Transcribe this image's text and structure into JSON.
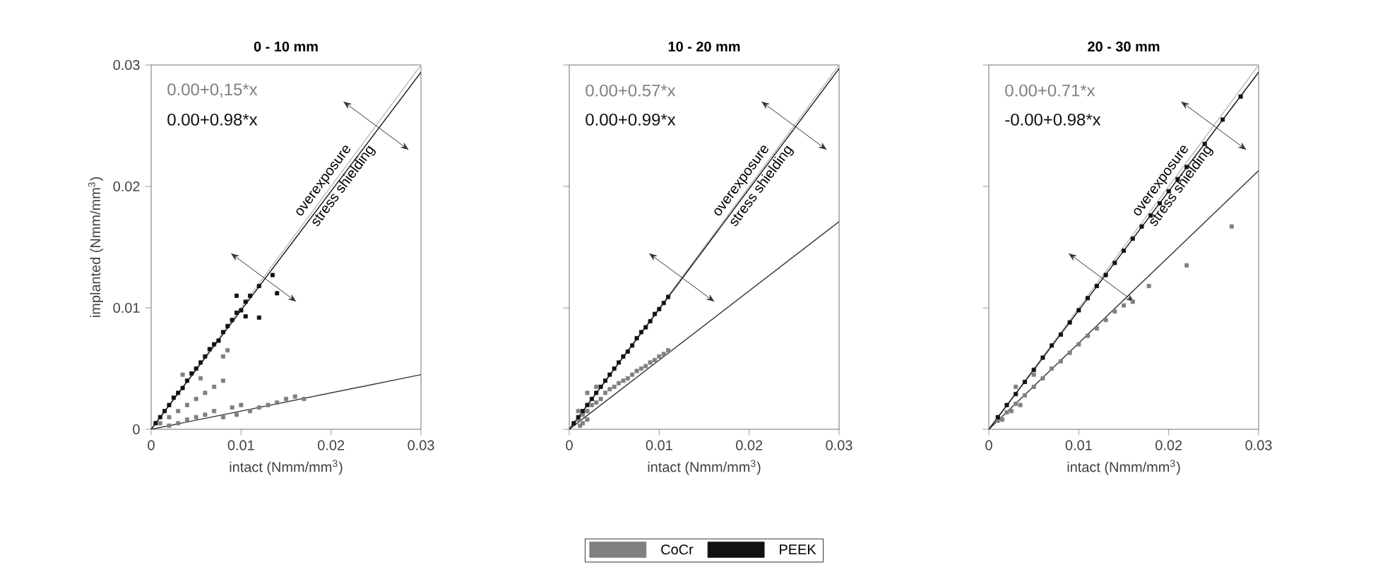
{
  "chart_data": [
    {
      "type": "scatter",
      "title": "0 - 10 mm",
      "xlabel": "intact (Nmm/mm$^{3}$)",
      "ylabel": "implanted (Nmm/mm$^{3}$)",
      "xlim": [
        0,
        0.03
      ],
      "ylim": [
        0,
        0.03
      ],
      "xticks": [
        0,
        0.01,
        0.02,
        0.03
      ],
      "yticks": [
        0,
        0.01,
        0.02,
        0.03
      ],
      "annotations": [
        "0.00+0,15*x",
        "0.00+0.98*x",
        "overexposure",
        "stress shielding"
      ],
      "series": [
        {
          "marker": "square",
          "color": "#808080",
          "x": [
            0.001,
            0.002,
            0.002,
            0.003,
            0.003,
            0.004,
            0.004,
            0.005,
            0.005,
            0.006,
            0.006,
            0.007,
            0.007,
            0.008,
            0.008,
            0.009,
            0.0095,
            0.01,
            0.011,
            0.012,
            0.013,
            0.014,
            0.015,
            0.016,
            0.0035,
            0.0055,
            0.008,
            0.0085,
            0.017
          ],
          "values": [
            0.0005,
            0.001,
            0.0003,
            0.0015,
            0.0005,
            0.002,
            0.0008,
            0.0025,
            0.001,
            0.003,
            0.0012,
            0.0035,
            0.0015,
            0.001,
            0.004,
            0.0018,
            0.0012,
            0.002,
            0.0015,
            0.0018,
            0.002,
            0.0022,
            0.0025,
            0.0027,
            0.0045,
            0.0042,
            0.006,
            0.0065,
            0.0025
          ]
        },
        {
          "marker": "square",
          "color": "#111111",
          "x": [
            0.0005,
            0.001,
            0.0015,
            0.002,
            0.0025,
            0.003,
            0.0035,
            0.004,
            0.0045,
            0.005,
            0.0055,
            0.006,
            0.0065,
            0.007,
            0.0075,
            0.008,
            0.0085,
            0.009,
            0.0095,
            0.01,
            0.0105,
            0.011,
            0.012,
            0.0095,
            0.0105,
            0.012,
            0.014,
            0.0135
          ],
          "values": [
            0.0005,
            0.001,
            0.0015,
            0.002,
            0.0026,
            0.003,
            0.0034,
            0.004,
            0.0046,
            0.005,
            0.0055,
            0.006,
            0.0066,
            0.007,
            0.0073,
            0.008,
            0.0085,
            0.009,
            0.0096,
            0.0098,
            0.0105,
            0.011,
            0.0118,
            0.011,
            0.0093,
            0.0092,
            0.0112,
            0.0127
          ]
        },
        {
          "type": "line",
          "color": "#bbbbbb",
          "x": [
            0,
            0.03
          ],
          "values": [
            0,
            0.03
          ]
        },
        {
          "type": "line",
          "color": "#333333",
          "x": [
            0,
            0.03
          ],
          "values": [
            0,
            0.0045
          ]
        },
        {
          "type": "line",
          "color": "#111111",
          "x": [
            0,
            0.03
          ],
          "values": [
            0,
            0.0294
          ]
        }
      ]
    },
    {
      "type": "scatter",
      "title": "10 - 20 mm",
      "xlabel": "intact (Nmm/mm$^{3}$)",
      "xlim": [
        0,
        0.03
      ],
      "ylim": [
        0,
        0.03
      ],
      "xticks": [
        0,
        0.01,
        0.02,
        0.03
      ],
      "yticks": [
        0,
        0.01,
        0.02,
        0.03
      ],
      "tick_labels": "x",
      "legend": "bottom",
      "annotations": [
        "0.00+0.57*x",
        "0.00+0.99*x",
        "overexposure",
        "stress shielding"
      ],
      "series": [
        {
          "name": "CoCr",
          "marker": "square",
          "color": "#808080",
          "x": [
            0.0012,
            0.001,
            0.0015,
            0.002,
            0.0025,
            0.003,
            0.0035,
            0.004,
            0.0045,
            0.005,
            0.0055,
            0.006,
            0.0065,
            0.007,
            0.0075,
            0.008,
            0.0085,
            0.009,
            0.0095,
            0.01,
            0.0105,
            0.011,
            0.001,
            0.002,
            0.003,
            0.0015,
            0.002
          ],
          "values": [
            0.0003,
            0.0008,
            0.0012,
            0.0015,
            0.002,
            0.0022,
            0.0025,
            0.003,
            0.0033,
            0.0035,
            0.0038,
            0.004,
            0.0042,
            0.0045,
            0.0048,
            0.005,
            0.0052,
            0.0055,
            0.0057,
            0.006,
            0.0062,
            0.0065,
            0.0015,
            0.003,
            0.0035,
            0.0005,
            0.0008
          ]
        },
        {
          "name": "PEEK",
          "marker": "square",
          "color": "#111111",
          "x": [
            0.0005,
            0.001,
            0.0015,
            0.002,
            0.0025,
            0.003,
            0.0035,
            0.004,
            0.0045,
            0.005,
            0.0055,
            0.006,
            0.0065,
            0.007,
            0.0075,
            0.008,
            0.0085,
            0.009,
            0.0095,
            0.01,
            0.0105,
            0.011
          ],
          "values": [
            0.0005,
            0.001,
            0.0015,
            0.002,
            0.0025,
            0.003,
            0.0035,
            0.004,
            0.0045,
            0.005,
            0.0055,
            0.006,
            0.0064,
            0.0069,
            0.0075,
            0.008,
            0.0084,
            0.0089,
            0.0095,
            0.0099,
            0.0104,
            0.0109
          ]
        },
        {
          "type": "line",
          "color": "#bbbbbb",
          "x": [
            0,
            0.03
          ],
          "values": [
            0,
            0.03
          ]
        },
        {
          "type": "line",
          "color": "#333333",
          "x": [
            0,
            0.03
          ],
          "values": [
            0,
            0.0171
          ]
        },
        {
          "type": "line",
          "color": "#111111",
          "x": [
            0,
            0.03
          ],
          "values": [
            0,
            0.0297
          ]
        }
      ]
    },
    {
      "type": "scatter",
      "title": "20 - 30 mm",
      "xlabel": "intact (Nmm/mm$^{3}$)",
      "xlim": [
        0,
        0.03
      ],
      "ylim": [
        0,
        0.03
      ],
      "xticks": [
        0,
        0.01,
        0.02,
        0.03
      ],
      "yticks": [
        0,
        0.01,
        0.02,
        0.03
      ],
      "tick_labels": "x",
      "annotations": [
        "0.00+0.71*x",
        "-0.00+0.98*x",
        "overexposure",
        "stress shielding"
      ],
      "series": [
        {
          "marker": "square",
          "color": "#808080",
          "x": [
            0.001,
            0.002,
            0.003,
            0.004,
            0.005,
            0.006,
            0.007,
            0.008,
            0.009,
            0.01,
            0.011,
            0.012,
            0.013,
            0.014,
            0.015,
            0.016,
            0.0178,
            0.022,
            0.027,
            0.003,
            0.005,
            0.0015,
            0.0025,
            0.0035
          ],
          "values": [
            0.0007,
            0.0014,
            0.0021,
            0.0028,
            0.0035,
            0.0042,
            0.005,
            0.0056,
            0.0063,
            0.007,
            0.0077,
            0.0083,
            0.009,
            0.0097,
            0.0102,
            0.0105,
            0.0118,
            0.0135,
            0.0167,
            0.0035,
            0.0045,
            0.0008,
            0.0015,
            0.002
          ]
        },
        {
          "marker": "square",
          "color": "#111111",
          "x": [
            0.001,
            0.002,
            0.003,
            0.004,
            0.005,
            0.006,
            0.007,
            0.008,
            0.009,
            0.01,
            0.011,
            0.012,
            0.013,
            0.014,
            0.015,
            0.016,
            0.017,
            0.018,
            0.019,
            0.02,
            0.021,
            0.022,
            0.024,
            0.026,
            0.028
          ],
          "values": [
            0.001,
            0.002,
            0.0029,
            0.0039,
            0.0049,
            0.0059,
            0.0069,
            0.0078,
            0.0088,
            0.0098,
            0.0108,
            0.0118,
            0.0127,
            0.0137,
            0.0147,
            0.0157,
            0.0167,
            0.0176,
            0.0186,
            0.0196,
            0.0206,
            0.0216,
            0.0235,
            0.0255,
            0.0274
          ]
        },
        {
          "type": "line",
          "color": "#bbbbbb",
          "x": [
            0,
            0.03
          ],
          "values": [
            0,
            0.03
          ]
        },
        {
          "type": "line",
          "color": "#333333",
          "x": [
            0,
            0.03
          ],
          "values": [
            0,
            0.0213
          ]
        },
        {
          "type": "line",
          "color": "#111111",
          "x": [
            0,
            0.03
          ],
          "values": [
            0,
            0.0294
          ]
        }
      ]
    }
  ]
}
